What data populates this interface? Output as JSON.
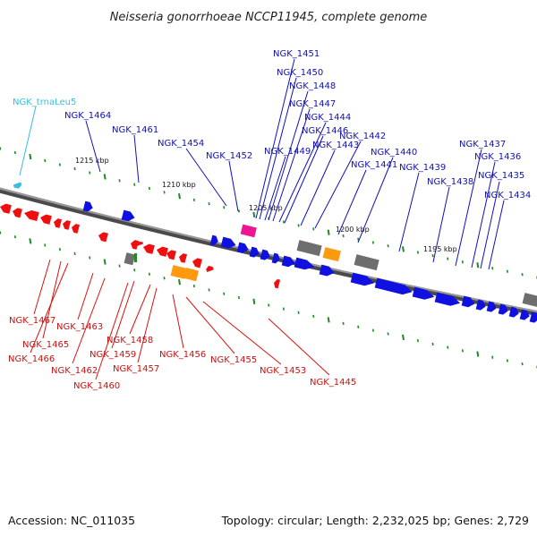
{
  "title": "Neisseria gonorrhoeae NCCP11945, complete genome",
  "footer": {
    "accession": "Accession: NC_011035",
    "summary": "Topology: circular; Length: 2,232,025 bp; Genes: 2,729"
  },
  "scale_labels": [
    "1215 kbp",
    "1210 kbp",
    "1205 kbp",
    "1200 kbp",
    "1195 kbp"
  ],
  "colors": {
    "forward": "#1010e0",
    "reverse": "#ee1010",
    "trna": "#33c0e0",
    "pseudo": "#6e6e6e",
    "orange": "#ff9a10",
    "magenta": "#ee1493",
    "backbone": "#8a8a8a",
    "ticks": "#1f8a1f",
    "forward_label": "#1010b0",
    "reverse_label": "#cc1010"
  },
  "top_labels": [
    {
      "text": "NGK_trnaLeu5",
      "kind": "trna"
    },
    {
      "text": "NGK_1464",
      "kind": "forward"
    },
    {
      "text": "NGK_1461",
      "kind": "forward"
    },
    {
      "text": "NGK_1454",
      "kind": "forward"
    },
    {
      "text": "NGK_1452",
      "kind": "forward"
    },
    {
      "text": "NGK_1451",
      "kind": "forward"
    },
    {
      "text": "NGK_1450",
      "kind": "forward"
    },
    {
      "text": "NGK_1448",
      "kind": "forward"
    },
    {
      "text": "NGK_1447",
      "kind": "forward"
    },
    {
      "text": "NGK_1444",
      "kind": "forward"
    },
    {
      "text": "NGK_1446",
      "kind": "forward"
    },
    {
      "text": "NGK_1449",
      "kind": "forward"
    },
    {
      "text": "NGK_1443",
      "kind": "forward"
    },
    {
      "text": "NGK_1442",
      "kind": "forward"
    },
    {
      "text": "NGK_1441",
      "kind": "forward"
    },
    {
      "text": "NGK_1440",
      "kind": "forward"
    },
    {
      "text": "NGK_1439",
      "kind": "forward"
    },
    {
      "text": "NGK_1438",
      "kind": "forward"
    },
    {
      "text": "NGK_1437",
      "kind": "forward"
    },
    {
      "text": "NGK_1436",
      "kind": "forward"
    },
    {
      "text": "NGK_1435",
      "kind": "forward"
    },
    {
      "text": "NGK_1434",
      "kind": "forward"
    }
  ],
  "bottom_labels": [
    {
      "text": "NGK_1467",
      "kind": "reverse"
    },
    {
      "text": "NGK_1465",
      "kind": "reverse"
    },
    {
      "text": "NGK_1466",
      "kind": "reverse"
    },
    {
      "text": "NGK_1463",
      "kind": "reverse"
    },
    {
      "text": "NGK_1462",
      "kind": "reverse"
    },
    {
      "text": "NGK_1458",
      "kind": "reverse"
    },
    {
      "text": "NGK_1459",
      "kind": "reverse"
    },
    {
      "text": "NGK_1460",
      "kind": "reverse"
    },
    {
      "text": "NGK_1457",
      "kind": "reverse"
    },
    {
      "text": "NGK_1456",
      "kind": "reverse"
    },
    {
      "text": "NGK_1455",
      "kind": "reverse"
    },
    {
      "text": "NGK_1453",
      "kind": "reverse"
    },
    {
      "text": "NGK_1445",
      "kind": "reverse"
    }
  ]
}
